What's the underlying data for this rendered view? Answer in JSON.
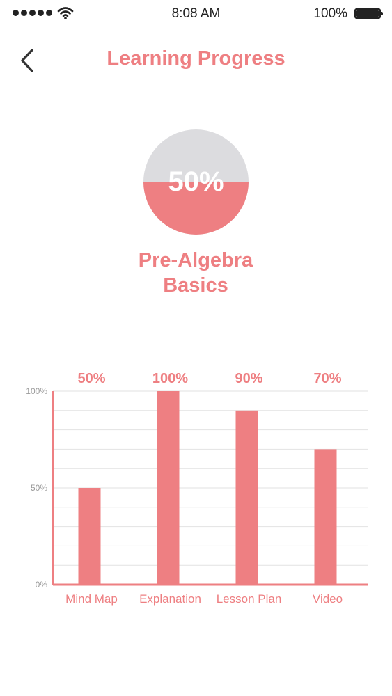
{
  "status_bar": {
    "time": "8:08 AM",
    "battery": "100%",
    "icons": [
      "signal-dots-icon",
      "wifi-icon",
      "battery-icon"
    ]
  },
  "header": {
    "title": "Learning Progress",
    "back_icon": "chevron-left-icon"
  },
  "summary": {
    "progress_label": "50%",
    "progress_fraction": 0.5,
    "course_title_line1": "Pre-Algebra",
    "course_title_line2": "Basics"
  },
  "colors": {
    "accent": "#ee7f82",
    "circle_track": "#dcdcdf",
    "axis_label": "#9a9a9a",
    "grid": "#e2e2e2"
  },
  "chart_data": {
    "type": "bar",
    "categories": [
      "Mind Map",
      "Explanation",
      "Lesson Plan",
      "Video"
    ],
    "values": [
      50,
      100,
      90,
      70
    ],
    "value_labels": [
      "50%",
      "100%",
      "90%",
      "70%"
    ],
    "yticks": [
      "0%",
      "50%",
      "100%"
    ],
    "ylim": [
      0,
      100
    ],
    "grid": true,
    "title": "",
    "xlabel": "",
    "ylabel": ""
  }
}
